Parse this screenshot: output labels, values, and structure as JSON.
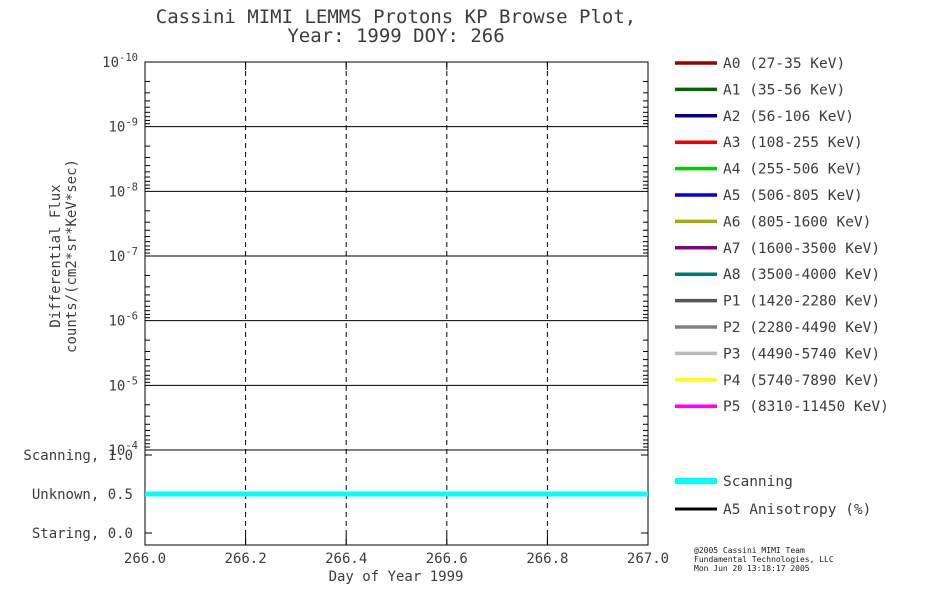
{
  "chart_data": {
    "type": "line",
    "title_line1": "Cassini MIMI LEMMS Protons KP Browse Plot,",
    "title_line2": "Year: 1999 DOY: 266",
    "xlabel": "Day of Year 1999",
    "ylabel_line1": "Differential Flux",
    "ylabel_line2": "counts/(cm2*sr*KeV*sec)",
    "xlim": [
      266.0,
      267.0
    ],
    "x_ticks": [
      {
        "value": 266.0,
        "label": "266.0"
      },
      {
        "value": 266.2,
        "label": "266.2"
      },
      {
        "value": 266.4,
        "label": "266.4"
      },
      {
        "value": 266.6,
        "label": "266.6"
      },
      {
        "value": 266.8,
        "label": "266.8"
      },
      {
        "value": 267.0,
        "label": "267.0"
      }
    ],
    "y_scale": "log",
    "y_tick_exponents": [
      -10,
      -9,
      -8,
      -7,
      -6,
      -5,
      -4
    ],
    "y_orientation": "10^-10 at top, 10^-4 at bottom",
    "grid": {
      "horizontal": "solid",
      "vertical": "dashed"
    },
    "series": [],
    "status_panel": {
      "y_ticks": [
        {
          "label": "Scanning, 1.0",
          "value": 1.0
        },
        {
          "label": "Unknown, 0.5",
          "value": 0.5
        },
        {
          "label": "Staring, 0.0",
          "value": 0.0
        }
      ],
      "series": [
        {
          "name": "Scanning",
          "color": "#00FFFF",
          "type": "hline",
          "y": 0.5,
          "x_start": 266.0,
          "x_end": 267.0,
          "linewidth": 5
        }
      ]
    },
    "legend_channels": [
      {
        "label": "A0 (27-35 KeV)",
        "color": "#990000"
      },
      {
        "label": "A1 (35-56 KeV)",
        "color": "#006600"
      },
      {
        "label": "A2 (56-106 KeV)",
        "color": "#000099"
      },
      {
        "label": "A3 (108-255 KeV)",
        "color": "#EE0000"
      },
      {
        "label": "A4 (255-506 KeV)",
        "color": "#00CC00"
      },
      {
        "label": "A5 (506-805 KeV)",
        "color": "#0000EE"
      },
      {
        "label": "A6 (805-1600 KeV)",
        "color": "#AAAA00"
      },
      {
        "label": "A7 (1600-3500 KeV)",
        "color": "#880088"
      },
      {
        "label": "A8 (3500-4000 KeV)",
        "color": "#007777"
      },
      {
        "label": "P1 (1420-2280 KeV)",
        "color": "#555555"
      },
      {
        "label": "P2 (2280-4490 KeV)",
        "color": "#808080"
      },
      {
        "label": "P3 (4490-5740 KeV)",
        "color": "#BBBBBB"
      },
      {
        "label": "P4 (5740-7890 KeV)",
        "color": "#FFFF00"
      },
      {
        "label": "P5 (8310-11450 KeV)",
        "color": "#FF00FF"
      }
    ],
    "legend_status": [
      {
        "label": "Scanning",
        "color": "#00FFFF",
        "linewidth": 6
      },
      {
        "label": "A5 Anisotropy (%)",
        "color": "#000000",
        "linewidth": 3
      }
    ]
  },
  "credit": {
    "line1": "@2005 Cassini MIMI Team",
    "line2": "Fundamental Technologies, LLC",
    "line3": "Mon Jun 20 13:18:17 2005",
    "line3_color": "#2e2ecc"
  }
}
